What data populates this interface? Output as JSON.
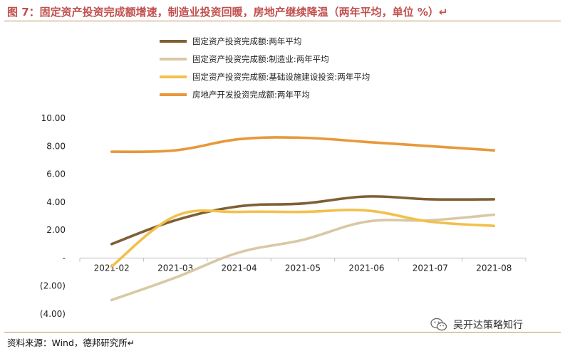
{
  "title": "图 7：固定资产投资完成额增速，制造业投资回暖，房地产继续降温（两年平均，单位 %）↵",
  "source": "资料来源：Wind，德邦研究所↵",
  "watermark": "吴开达策略知行",
  "chart_data": {
    "type": "line",
    "categories": [
      "2021-02",
      "2021-03",
      "2021-04",
      "2021-05",
      "2021-06",
      "2021-07",
      "2021-08"
    ],
    "y_tick_labels": [
      "10.00",
      "8.00",
      "6.00",
      "4.00",
      "2.00",
      "-",
      "(2.00)",
      "(4.00)"
    ],
    "ylim": [
      -4,
      10
    ],
    "grid": false,
    "legend_position": "top",
    "series": [
      {
        "name": "固定资产投资完成额:两年平均",
        "color": "#7f5f35",
        "values": [
          1.0,
          2.7,
          3.7,
          3.9,
          4.4,
          4.2,
          4.2
        ]
      },
      {
        "name": "固定资产投资完成额:制造业:两年平均",
        "color": "#d9c8a4",
        "values": [
          -3.0,
          -1.4,
          0.4,
          1.3,
          2.6,
          2.7,
          3.1
        ]
      },
      {
        "name": "固定资产投资完成额:基础设施建设投资:两年平均",
        "color": "#f2c04c",
        "values": [
          -0.6,
          3.0,
          3.3,
          3.3,
          3.4,
          2.6,
          2.3
        ]
      },
      {
        "name": "房地产开发投资完成额:两年平均",
        "color": "#e8983b",
        "values": [
          7.6,
          7.7,
          8.5,
          8.6,
          8.3,
          8.0,
          7.7
        ]
      }
    ]
  }
}
